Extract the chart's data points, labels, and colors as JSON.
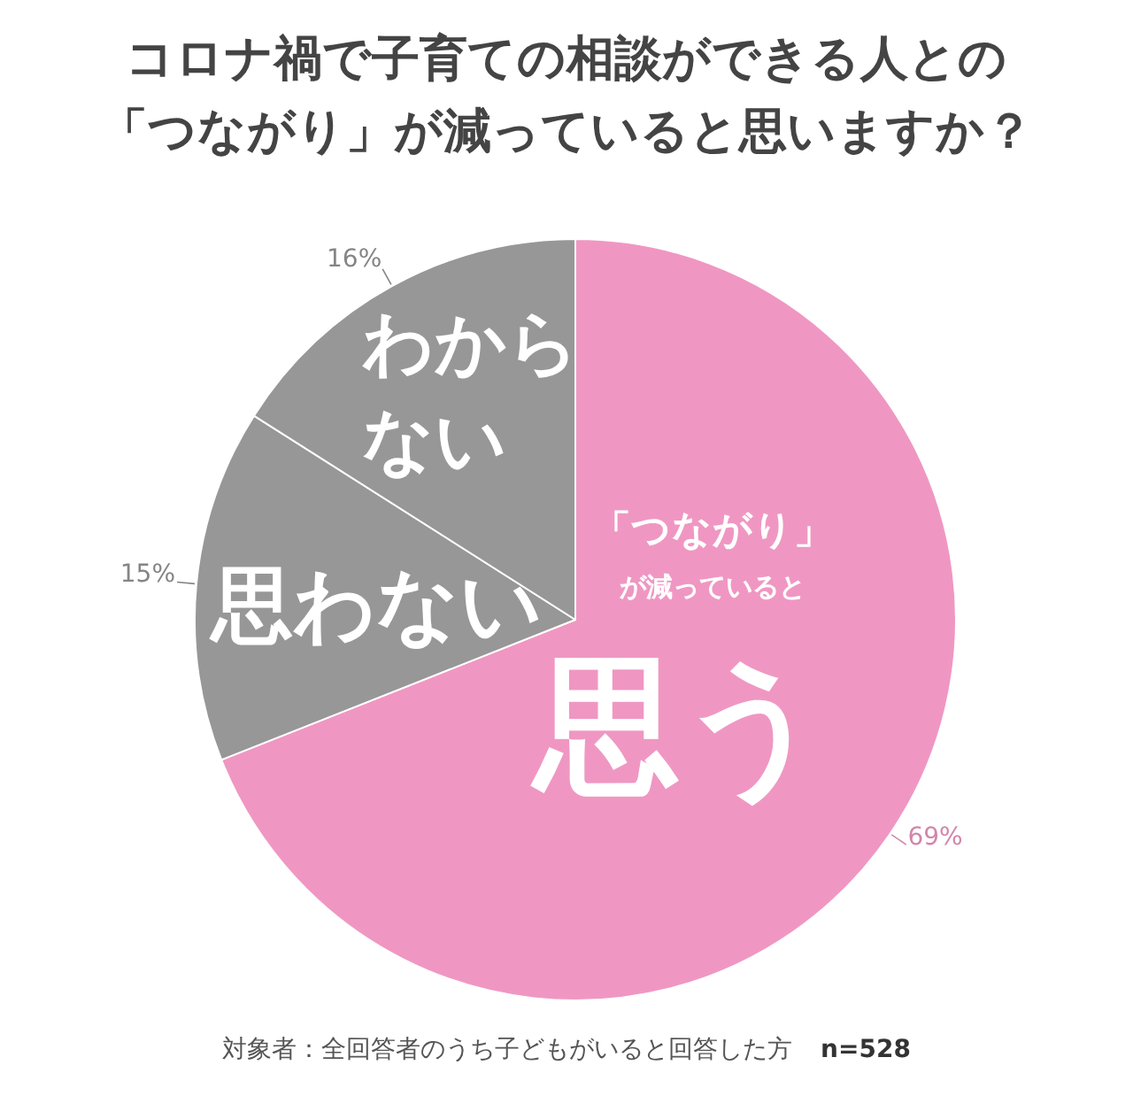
{
  "chart_data": {
    "type": "pie",
    "title": "コロナ禍で子育ての相談ができる人との「つながり」が減っていると思いますか？",
    "categories": [
      "「つながり」が減っていると思う",
      "思わない",
      "わからない"
    ],
    "values": [
      69,
      15,
      16
    ],
    "colors": [
      "#ef97c2",
      "#979797",
      "#979797"
    ],
    "value_labels": [
      "69%",
      "15%",
      "16%"
    ],
    "annotations": [
      "対象者：全回答者のうち子どもがいると回答した方",
      "n=528"
    ]
  }
}
